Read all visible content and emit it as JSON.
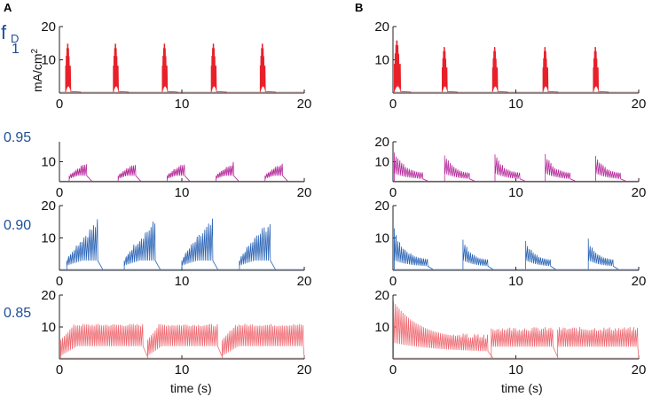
{
  "panels": {
    "left": "A",
    "right": "B"
  },
  "fd_symbol": "f",
  "fd_subscript": "D",
  "ylabel": "mA/cm",
  "ylabel_sup": "2",
  "xlabel": "time (s)",
  "chart_data": [
    {
      "type": "line",
      "panel": "A",
      "fD": "1",
      "title": "",
      "xlabel": "",
      "ylabel": "mA/cm2",
      "xlim": [
        0,
        20
      ],
      "ylim": [
        0,
        20
      ],
      "xticks": [
        "0",
        "10",
        "20"
      ],
      "yticks": [
        "10",
        "20"
      ],
      "color": "#e8202a",
      "shape": "spike",
      "bursts": [
        {
          "start": 0.5,
          "end": 0.9,
          "peak": 15,
          "base": 2
        },
        {
          "start": 4.4,
          "end": 4.8,
          "peak": 15,
          "base": 2
        },
        {
          "start": 8.4,
          "end": 8.8,
          "peak": 15,
          "base": 2
        },
        {
          "start": 12.4,
          "end": 12.8,
          "peak": 15,
          "base": 2
        },
        {
          "start": 16.4,
          "end": 16.8,
          "peak": 15,
          "base": 2
        }
      ]
    },
    {
      "type": "line",
      "panel": "B",
      "fD": "1",
      "title": "",
      "xlabel": "",
      "ylabel": "",
      "xlim": [
        0,
        20
      ],
      "ylim": [
        0,
        20
      ],
      "xticks": [
        "0",
        "10",
        "20"
      ],
      "yticks": [
        "10",
        "20"
      ],
      "color": "#e8202a",
      "shape": "spike",
      "bursts": [
        {
          "start": 0.1,
          "end": 0.6,
          "peak": 16,
          "base": 2
        },
        {
          "start": 4.0,
          "end": 4.4,
          "peak": 14,
          "base": 2
        },
        {
          "start": 8.1,
          "end": 8.5,
          "peak": 14,
          "base": 2
        },
        {
          "start": 12.2,
          "end": 12.6,
          "peak": 14,
          "base": 2
        },
        {
          "start": 16.3,
          "end": 16.7,
          "peak": 14,
          "base": 2
        }
      ]
    },
    {
      "type": "line",
      "panel": "A",
      "fD": "0.95",
      "title": "",
      "xlabel": "",
      "ylabel": "",
      "xlim": [
        0,
        20
      ],
      "ylim": [
        0,
        20
      ],
      "xticks": [
        "0",
        "10",
        "20"
      ],
      "yticks": [
        "10"
      ],
      "color": "#b5299b",
      "shape": "rise",
      "bursts": [
        {
          "start": 0.8,
          "end": 2.2,
          "peak": 10,
          "base": 3
        },
        {
          "start": 4.8,
          "end": 6.2,
          "peak": 10,
          "base": 3
        },
        {
          "start": 8.8,
          "end": 10.2,
          "peak": 10,
          "base": 3
        },
        {
          "start": 12.8,
          "end": 14.2,
          "peak": 10,
          "base": 3
        },
        {
          "start": 16.8,
          "end": 18.2,
          "peak": 10,
          "base": 3
        }
      ]
    },
    {
      "type": "line",
      "panel": "B",
      "fD": "0.95",
      "title": "",
      "xlabel": "",
      "ylabel": "",
      "xlim": [
        0,
        20
      ],
      "ylim": [
        0,
        20
      ],
      "xticks": [
        "0",
        "10",
        "20"
      ],
      "yticks": [
        "10",
        "20"
      ],
      "color": "#b5299b",
      "shape": "decay",
      "bursts": [
        {
          "start": 0.1,
          "end": 2.4,
          "peak": 17,
          "base": 4
        },
        {
          "start": 4.2,
          "end": 6.2,
          "peak": 15,
          "base": 4
        },
        {
          "start": 8.3,
          "end": 10.3,
          "peak": 15,
          "base": 4
        },
        {
          "start": 12.4,
          "end": 14.4,
          "peak": 15,
          "base": 4
        },
        {
          "start": 16.5,
          "end": 18.5,
          "peak": 15,
          "base": 4
        }
      ]
    },
    {
      "type": "line",
      "panel": "A",
      "fD": "0.90",
      "title": "",
      "xlabel": "",
      "ylabel": "",
      "xlim": [
        0,
        20
      ],
      "ylim": [
        0,
        20
      ],
      "xticks": [
        "0",
        "10",
        "20"
      ],
      "yticks": [
        "10",
        "20"
      ],
      "color": "#2a63b5",
      "shape": "rise",
      "bursts": [
        {
          "start": 0.6,
          "end": 3.1,
          "peak": 16,
          "base": 3
        },
        {
          "start": 5.3,
          "end": 7.8,
          "peak": 16,
          "base": 3
        },
        {
          "start": 10.0,
          "end": 12.5,
          "peak": 16,
          "base": 3
        },
        {
          "start": 14.7,
          "end": 17.2,
          "peak": 16,
          "base": 3
        }
      ]
    },
    {
      "type": "line",
      "panel": "B",
      "fD": "0.90",
      "title": "",
      "xlabel": "",
      "ylabel": "",
      "xlim": [
        0,
        20
      ],
      "ylim": [
        0,
        20
      ],
      "xticks": [
        "0",
        "10",
        "20"
      ],
      "yticks": [
        "10",
        "20"
      ],
      "color": "#2a63b5",
      "shape": "decay",
      "bursts": [
        {
          "start": 0.1,
          "end": 2.8,
          "peak": 13,
          "base": 3
        },
        {
          "start": 5.7,
          "end": 7.7,
          "peak": 10,
          "base": 3
        },
        {
          "start": 10.8,
          "end": 12.8,
          "peak": 10,
          "base": 3
        },
        {
          "start": 15.9,
          "end": 17.9,
          "peak": 10,
          "base": 3
        }
      ]
    },
    {
      "type": "line",
      "panel": "A",
      "fD": "0.85",
      "title": "",
      "xlabel": "",
      "ylabel": "",
      "xlim": [
        0,
        20
      ],
      "ylim": [
        0,
        20
      ],
      "xticks": [
        "0",
        "10",
        "20"
      ],
      "yticks": [
        "10",
        "20"
      ],
      "color": "#ee6a72",
      "shape": "plateau",
      "bursts": [
        {
          "start": 0.1,
          "end": 6.8,
          "peak": 11,
          "base": 6
        },
        {
          "start": 7.2,
          "end": 12.9,
          "peak": 11,
          "base": 6
        },
        {
          "start": 13.3,
          "end": 19.9,
          "peak": 11,
          "base": 6
        }
      ]
    },
    {
      "type": "line",
      "panel": "B",
      "fD": "0.85",
      "title": "",
      "xlabel": "",
      "ylabel": "",
      "xlim": [
        0,
        20
      ],
      "ylim": [
        0,
        20
      ],
      "xticks": [
        "0",
        "10",
        "20"
      ],
      "yticks": [
        "10",
        "20"
      ],
      "color": "#ee6a72",
      "shape": "decay_plateau",
      "bursts": [
        {
          "start": 0.05,
          "end": 7.7,
          "peak": 18,
          "base": 6
        },
        {
          "start": 8.0,
          "end": 13.0,
          "peak": 10,
          "base": 6
        },
        {
          "start": 13.4,
          "end": 19.9,
          "peak": 10,
          "base": 6
        }
      ]
    }
  ]
}
